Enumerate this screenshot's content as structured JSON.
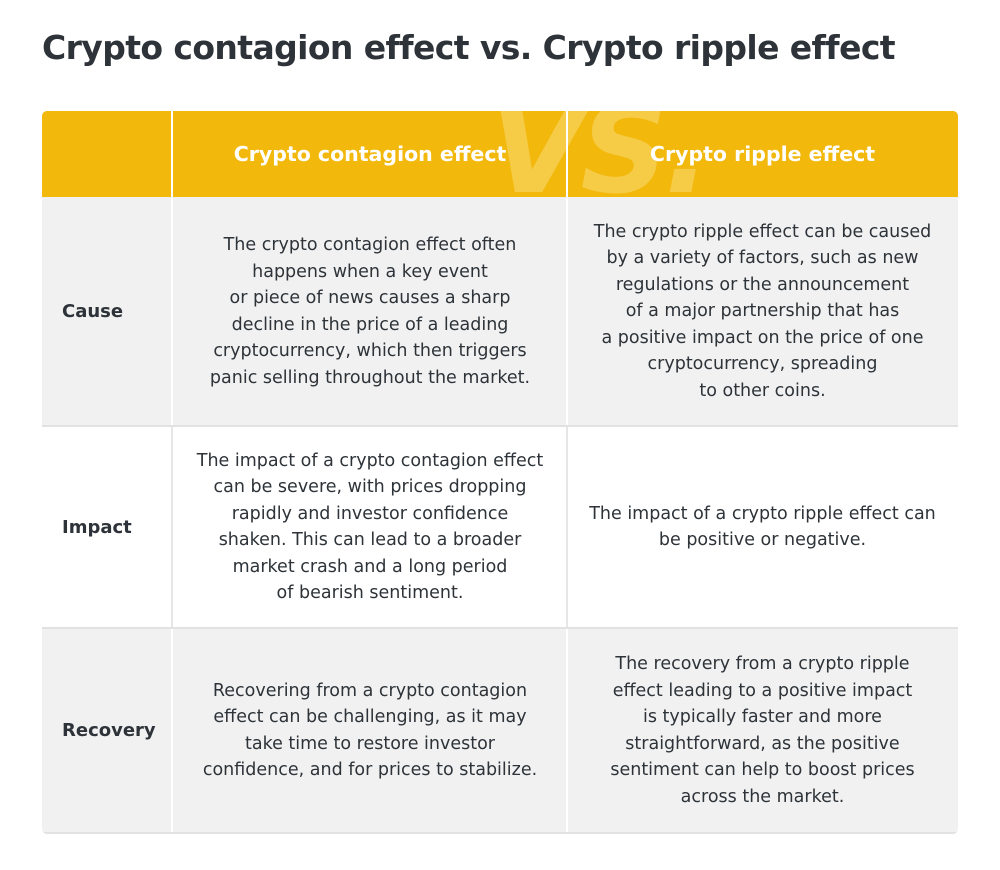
{
  "title": "Crypto contagion effect vs. Crypto ripple effect",
  "watermark": "VS.",
  "header": {
    "col1": "Crypto contagion effect",
    "col2": "Crypto ripple effect"
  },
  "rows": [
    {
      "label": "Cause",
      "col1": "The crypto contagion effect often\nhappens when a key event\nor piece of news causes a sharp\ndecline in the price of a leading\ncryptocurrency, which then triggers\npanic selling throughout the market.",
      "col2": "The crypto ripple effect can be caused\nby a variety of factors, such as new\nregulations or the announcement\nof a major partnership that has\na positive impact on the price of one\ncryptocurrency, spreading\nto other coins."
    },
    {
      "label": "Impact",
      "col1": "The impact of a crypto contagion effect\ncan be severe, with prices dropping\nrapidly and investor confidence\nshaken. This can lead to a broader\nmarket crash and a long period\nof bearish sentiment.",
      "col2": "The impact of a crypto ripple effect can\nbe positive or negative."
    },
    {
      "label": "Recovery",
      "col1": "Recovering from a crypto contagion\neffect can be challenging, as it may\ntake time to restore investor\nconfidence, and for prices to stabilize.",
      "col2": "The recovery from a crypto ripple\neffect leading to a positive impact\nis typically faster and more\nstraightforward, as the positive\nsentiment can help to boost prices\nacross the market."
    }
  ],
  "colors": {
    "header_bg": "#f2b80c",
    "watermark": "#f6cb46",
    "alt_row_bg": "#f1f1f1",
    "text": "#2d3338"
  }
}
